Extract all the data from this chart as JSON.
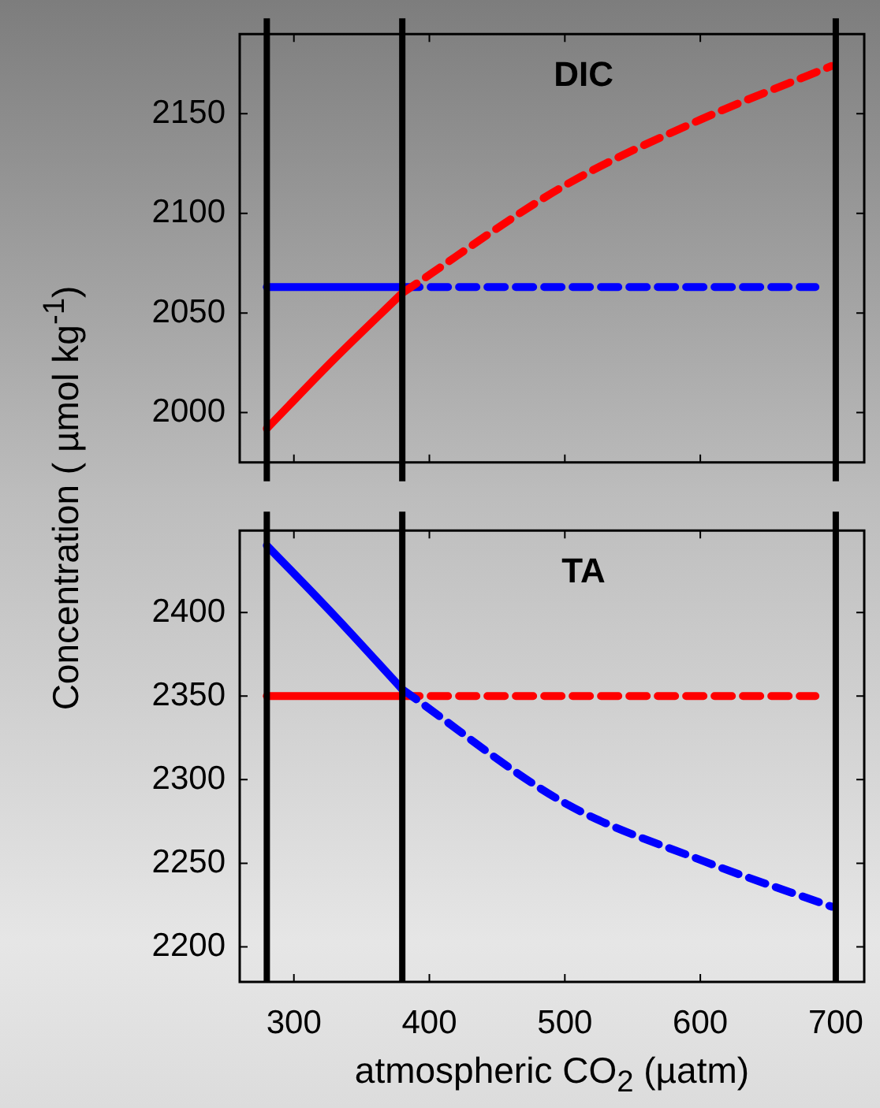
{
  "chart_data": [
    {
      "type": "line",
      "title": "DIC",
      "ylabel": "Concentration ( µmol kg$^{-1}$)",
      "xlim": [
        260,
        721
      ],
      "xticks": [
        300,
        400,
        500,
        600,
        700
      ],
      "ylim": [
        1975,
        2190
      ],
      "yticks": [
        2000,
        2050,
        2100,
        2150
      ],
      "tick_labels": "y",
      "grid": false,
      "legend": false,
      "marker": "none",
      "series": [
        {
          "color": "#ff0000",
          "line_style": "solid",
          "x": [
            280,
            330,
            380
          ],
          "values": [
            1992,
            2027,
            2060
          ]
        },
        {
          "color": "#ff0000",
          "line_style": "dashed",
          "x": [
            380,
            500,
            600,
            697
          ],
          "values": [
            2060,
            2114,
            2147,
            2174
          ]
        },
        {
          "color": "#0000ff",
          "line_style": "solid",
          "x": [
            280,
            380
          ],
          "values": [
            2063,
            2063
          ]
        },
        {
          "color": "#0000ff",
          "line_style": "dashed",
          "x": [
            380,
            685
          ],
          "values": [
            2063,
            2063
          ]
        }
      ],
      "ref_lines": [
        {
          "axis": "x",
          "value": 280,
          "color": "#000000"
        },
        {
          "axis": "x",
          "value": 380,
          "color": "#000000"
        },
        {
          "axis": "x",
          "value": 700,
          "color": "#000000"
        }
      ]
    },
    {
      "type": "line",
      "title": "TA",
      "xlabel": "atmospheric CO$_{2}$ (µatm)",
      "xlim": [
        260,
        721
      ],
      "xticks": [
        300,
        400,
        500,
        600,
        700
      ],
      "ylim": [
        2179,
        2449
      ],
      "yticks": [
        2200,
        2250,
        2300,
        2350,
        2400
      ],
      "grid": false,
      "legend": false,
      "marker": "none",
      "series": [
        {
          "color": "#0000ff",
          "line_style": "solid",
          "x": [
            280,
            330,
            380
          ],
          "values": [
            2440,
            2398,
            2354
          ]
        },
        {
          "color": "#0000ff",
          "line_style": "dashed",
          "x": [
            380,
            500,
            600,
            697
          ],
          "values": [
            2354,
            2286,
            2252,
            2224
          ]
        },
        {
          "color": "#ff0000",
          "line_style": "solid",
          "x": [
            280,
            380
          ],
          "values": [
            2350,
            2350
          ]
        },
        {
          "color": "#ff0000",
          "line_style": "dashed",
          "x": [
            380,
            685
          ],
          "values": [
            2350,
            2350
          ]
        }
      ],
      "ref_lines": [
        {
          "axis": "x",
          "value": 280,
          "color": "#000000"
        },
        {
          "axis": "x",
          "value": 380,
          "color": "#000000"
        },
        {
          "axis": "x",
          "value": 700,
          "color": "#000000"
        }
      ]
    }
  ]
}
